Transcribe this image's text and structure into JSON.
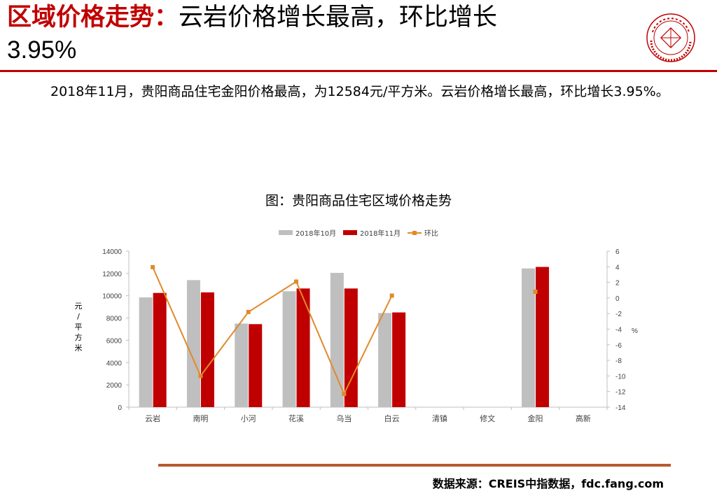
{
  "header": {
    "title_red": "区域价格走势：",
    "title_black": "云岩价格增长最高，环比增长",
    "title_line2": "3.95%"
  },
  "summary": "2018年11月，贵阳商品住宅金阳价格最高，为12584元/平方米。云岩价格增长最高，环比增长3.95%。",
  "source": "数据来源：CREIS中指数据，fdc.fang.com",
  "colors": {
    "brand_red": "#c00000",
    "oct_bar": "#bfbfbf",
    "nov_bar": "#c00000",
    "mom_line": "#e08a2a",
    "rule_bottom": "#b85a2e"
  },
  "chart_data": {
    "type": "bar",
    "title": "图：贵阳商品住宅区域价格走势",
    "categories": [
      "云岩",
      "南明",
      "小河",
      "花溪",
      "乌当",
      "白云",
      "清镇",
      "修文",
      "金阳",
      "高新"
    ],
    "series": [
      {
        "name": "2018年10月",
        "type": "bar",
        "axis": "left",
        "values": [
          9850,
          11400,
          7500,
          10400,
          12050,
          8450,
          null,
          null,
          12450,
          null
        ]
      },
      {
        "name": "2018年11月",
        "type": "bar",
        "axis": "left",
        "values": [
          10250,
          10300,
          7450,
          10650,
          10650,
          8500,
          null,
          null,
          12584,
          null
        ]
      },
      {
        "name": "环比",
        "type": "line",
        "axis": "right",
        "values": [
          3.95,
          -10.0,
          -1.8,
          2.1,
          -12.3,
          0.3,
          null,
          null,
          0.8,
          null
        ]
      }
    ],
    "ylabel": "元/平方米",
    "y2label": "%",
    "ylim": [
      0,
      14000
    ],
    "y2lim": [
      -14,
      6
    ],
    "yticks": [
      0,
      2000,
      4000,
      6000,
      8000,
      10000,
      12000,
      14000
    ],
    "y2ticks": [
      -14,
      -12,
      -10,
      -8,
      -6,
      -4,
      -2,
      0,
      2,
      4,
      6
    ],
    "legend_position": "top-center",
    "grid": false
  }
}
